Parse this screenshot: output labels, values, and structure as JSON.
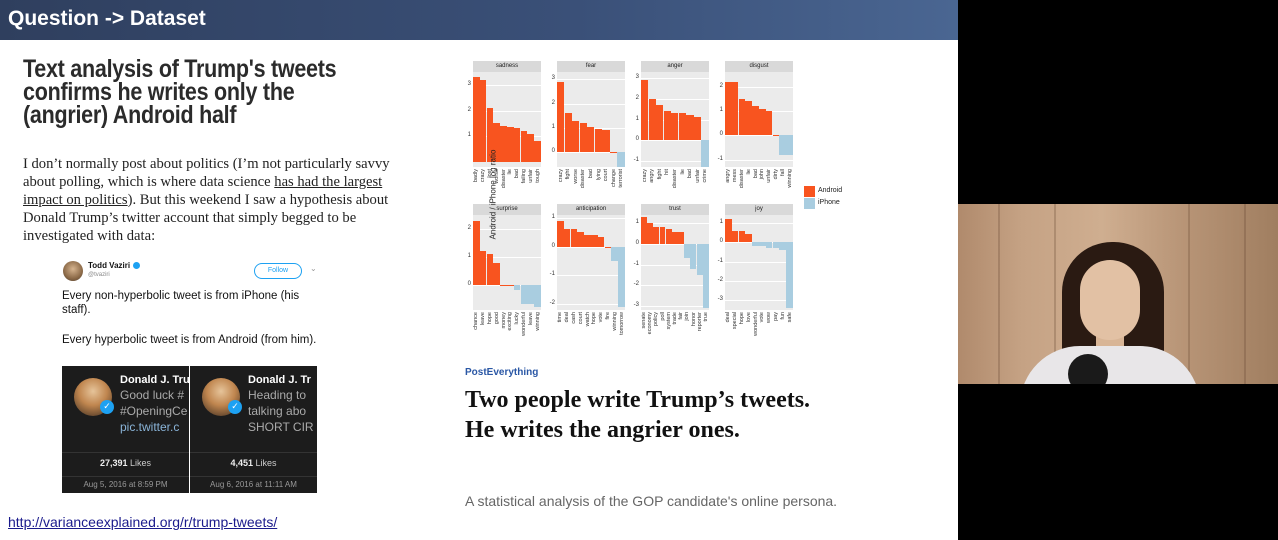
{
  "slide": {
    "header_title": "Question -> Dataset",
    "blog": {
      "title": "Text analysis of Trump's tweets confirms he writes only the (angrier) Android half",
      "body_1": "I don’t normally post about politics (I’m not particularly savvy about polling, which is where data science ",
      "body_link": "has had the largest impact on politics",
      "body_2": "). But this weekend I saw a hypothesis about Donald Trump’s twitter account that simply begged to be investigated with data:"
    },
    "tweet": {
      "author": "Todd Vaziri",
      "handle": "@tvaziri",
      "follow_label": "Follow",
      "chevron": "⌄",
      "text_1": "Every non-hyperbolic tweet is from iPhone (his staff).",
      "text_2": "Every hyperbolic tweet is from Android (from him).",
      "embeds": [
        {
          "name": "Donald J. Tru",
          "line1": "Good luck #",
          "line2": "#OpeningCe",
          "link": "pic.twitter.c",
          "likes": "27,391",
          "likes_label": "Likes",
          "date": "Aug 5, 2016 at 8:59 PM"
        },
        {
          "name": "Donald J. Tr",
          "line1": "Heading to",
          "line2": "talking abo",
          "link": "SHORT CIR",
          "likes": "4,451",
          "likes_label": "Likes",
          "date": "Aug 6, 2016 at 11:11 AM"
        }
      ]
    },
    "url": "http://varianceexplained.org/r/trump-tweets/",
    "article": {
      "kicker": "PostEverything",
      "headline": "Two people write Trump’s tweets. He writes the angrier ones.",
      "subhead": "A statistical analysis of the GOP candidate's online persona."
    }
  },
  "colors": {
    "android": "#f8541f",
    "iphone": "#a9cde0"
  },
  "chart_data": {
    "type": "bar",
    "ylabel": "Android / iPhone log ratio",
    "legend": [
      {
        "name": "Android",
        "color": "#f8541f"
      },
      {
        "name": "iPhone",
        "color": "#a9cde0"
      }
    ],
    "legend_placement": "right",
    "facets": [
      {
        "name": "sadness",
        "ylim": [
          -0.2,
          3.5
        ],
        "ticks": [
          1,
          2,
          3
        ],
        "categories": [
          "badly",
          "crazy",
          "lost",
          "worse",
          "disaster",
          "lie",
          "bad",
          "failing",
          "unfair",
          "tough"
        ],
        "values": [
          3.3,
          3.2,
          2.1,
          1.5,
          1.4,
          1.35,
          1.3,
          1.2,
          1.1,
          0.8
        ]
      },
      {
        "name": "fear",
        "ylim": [
          -0.6,
          3.3
        ],
        "ticks": [
          0,
          1,
          2,
          3
        ],
        "categories": [
          "crazy",
          "fight",
          "worse",
          "disaster",
          "bad",
          "lying",
          "court",
          "change",
          "terrorist"
        ],
        "values": [
          2.9,
          1.6,
          1.3,
          1.2,
          1.05,
          0.95,
          0.9,
          0.0,
          -0.6
        ]
      },
      {
        "name": "anger",
        "ylim": [
          -1.3,
          3.3
        ],
        "ticks": [
          -1,
          0,
          1,
          2,
          3
        ],
        "categories": [
          "crazy",
          "angry",
          "fight",
          "hit",
          "disaster",
          "lie",
          "bad",
          "unfair",
          "crime"
        ],
        "values": [
          2.9,
          2.0,
          1.7,
          1.4,
          1.3,
          1.3,
          1.2,
          1.1,
          -1.3
        ]
      },
      {
        "name": "disgust",
        "ylim": [
          -1.3,
          2.6
        ],
        "ticks": [
          -1,
          0,
          1,
          2
        ],
        "categories": [
          "angry",
          "mess",
          "disaster",
          "lie",
          "bad",
          "john",
          "unfair",
          "dirty",
          "fall",
          "winning"
        ],
        "values": [
          2.2,
          2.2,
          1.5,
          1.4,
          1.2,
          1.1,
          1.0,
          0.0,
          -0.8,
          -0.8
        ]
      },
      {
        "name": "surprise",
        "ylim": [
          -0.9,
          2.5
        ],
        "ticks": [
          0,
          1,
          2
        ],
        "categories": [
          "chance",
          "leave",
          "hope",
          "good",
          "money",
          "exciting",
          "lucky",
          "wonderful",
          "leave",
          "winning"
        ],
        "values": [
          2.3,
          1.2,
          1.1,
          0.8,
          0.0,
          0.0,
          -0.2,
          -0.7,
          -0.7,
          -0.8
        ]
      },
      {
        "name": "anticipation",
        "ylim": [
          -2.2,
          1.1
        ],
        "ticks": [
          -2,
          -1,
          0,
          1
        ],
        "categories": [
          "time",
          "deal",
          "cash",
          "court",
          "watch",
          "hope",
          "vote",
          "fire",
          "winning",
          "tomorrow"
        ],
        "values": [
          0.9,
          0.6,
          0.6,
          0.5,
          0.4,
          0.4,
          0.35,
          0.0,
          -0.5,
          -2.1
        ]
      },
      {
        "name": "trust",
        "ylim": [
          -3.2,
          1.4
        ],
        "ticks": [
          -3,
          -2,
          -1,
          0,
          1
        ],
        "categories": [
          "senate",
          "economy",
          "policy",
          "poll",
          "system",
          "trade",
          "fair",
          "join",
          "honor",
          "reporter",
          "true"
        ],
        "values": [
          1.3,
          1.0,
          0.8,
          0.8,
          0.7,
          0.6,
          0.6,
          -0.7,
          -1.2,
          -1.5,
          -3.1
        ]
      },
      {
        "name": "joy",
        "ylim": [
          -3.5,
          1.4
        ],
        "ticks": [
          -3,
          -2,
          -1,
          0,
          1
        ],
        "categories": [
          "deal",
          "special",
          "hope",
          "love",
          "wonderful",
          "vote",
          "wow",
          "pay",
          "fun",
          "safe"
        ],
        "values": [
          1.2,
          0.6,
          0.6,
          0.4,
          -0.2,
          -0.2,
          -0.3,
          -0.3,
          -0.4,
          -3.4
        ]
      }
    ]
  }
}
